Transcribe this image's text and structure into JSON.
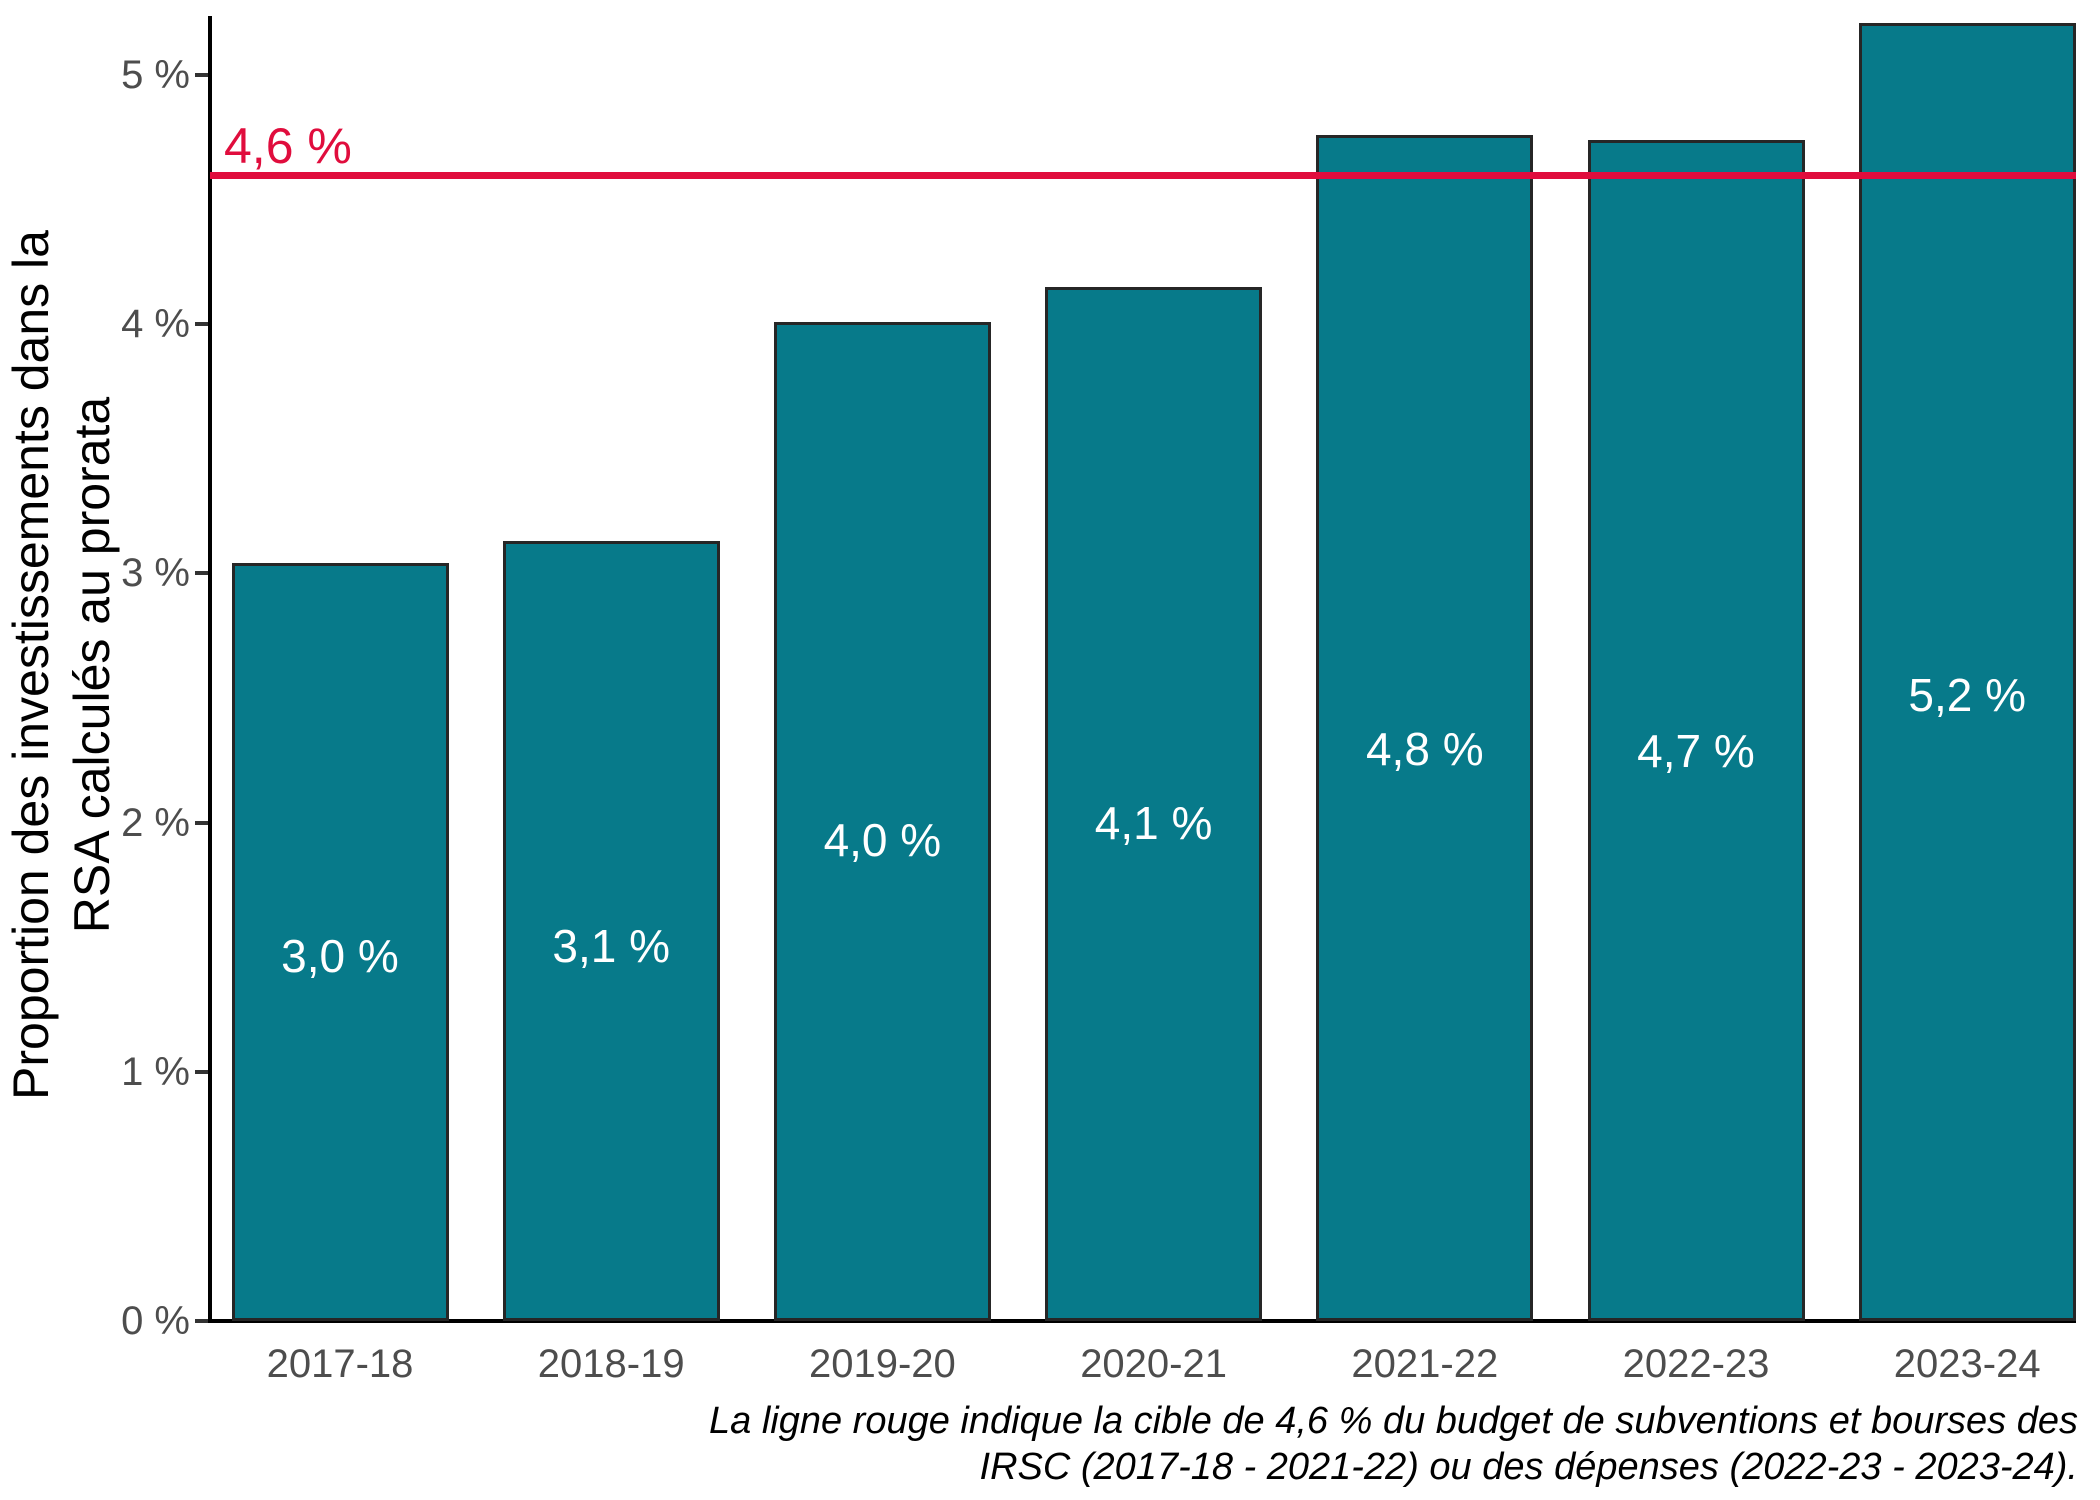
{
  "chart_data": {
    "type": "bar",
    "title": "",
    "xlabel": "",
    "ylabel_lines": [
      "Proportion des investissements dans la",
      "RSA calculés au prorata"
    ],
    "categories": [
      "2017-18",
      "2018-19",
      "2019-20",
      "2020-21",
      "2021-22",
      "2022-23",
      "2023-24"
    ],
    "values": [
      3.0,
      3.1,
      4.0,
      4.1,
      4.8,
      4.7,
      5.2
    ],
    "values_precise": [
      3.04,
      3.13,
      4.01,
      4.15,
      4.76,
      4.74,
      5.21
    ],
    "bar_value_labels": [
      "3,0 %",
      "3,1 %",
      "4,0 %",
      "4,1 %",
      "4,8 %",
      "4,7 %",
      "5,2 %"
    ],
    "y_tick_labels": [
      "0 %",
      "1 %",
      "2 %",
      "3 %",
      "4 %",
      "5 %"
    ],
    "y_tick_values": [
      0,
      1,
      2,
      3,
      4,
      5
    ],
    "ylim": [
      0,
      5.3
    ],
    "grid": false,
    "legend": false,
    "reference_line": {
      "value": 4.6,
      "label": "4,6 %"
    },
    "caption_lines": [
      "La ligne rouge indique la cible de 4,6 % du budget de subventions et bourses des",
      "IRSC (2017-18 - 2021-22) ou des dépenses (2022-23 - 2023-24)."
    ],
    "colors": {
      "bar_fill": "#077a8a",
      "bar_border": "#262626",
      "reference_line": "#e00d3d",
      "axis_line": "#000000",
      "tick_label": "#4d4d4d",
      "bar_label": "#ffffff",
      "caption": "#000000"
    }
  }
}
